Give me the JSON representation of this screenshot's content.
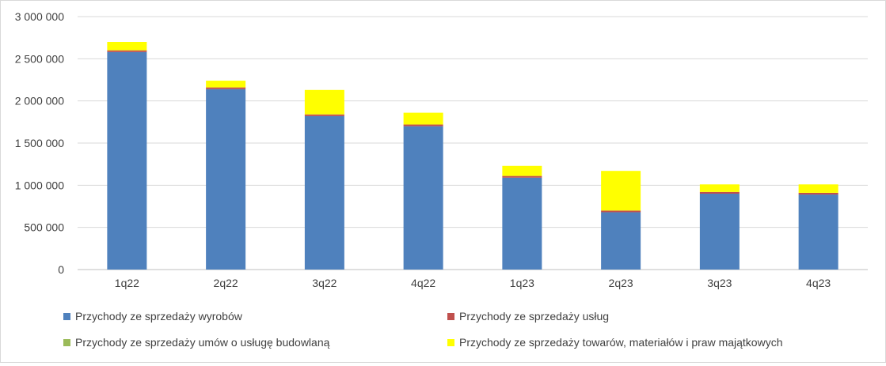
{
  "chart_data": {
    "type": "bar",
    "stacked": true,
    "categories": [
      "1q22",
      "2q22",
      "3q22",
      "4q22",
      "1q23",
      "2q23",
      "3q23",
      "4q23"
    ],
    "ylim": [
      0,
      3000000
    ],
    "yticks": [
      0,
      500000,
      1000000,
      1500000,
      2000000,
      2500000,
      3000000
    ],
    "ytick_labels": [
      "0",
      "500 000",
      "1 000 000",
      "1 500 000",
      "2 000 000",
      "2 500 000",
      "3 000 000"
    ],
    "grid": true,
    "legend_position": "bottom",
    "series": [
      {
        "name": "Przychody ze sprzedaży wyrobów",
        "color": "#4f81bd",
        "values": [
          2580000,
          2140000,
          1820000,
          1700000,
          1090000,
          680000,
          900000,
          890000
        ]
      },
      {
        "name": "Przychody ze sprzedaży usług",
        "color": "#c0504d",
        "values": [
          20000,
          20000,
          20000,
          20000,
          20000,
          20000,
          20000,
          20000
        ]
      },
      {
        "name": "Przychody ze sprzedaży umów o usługę budowlaną",
        "color": "#9bbb59",
        "values": [
          0,
          0,
          0,
          0,
          0,
          0,
          0,
          0
        ]
      },
      {
        "name": "Przychody ze sprzedaży towarów, materiałów i praw majątkowych",
        "color": "#ffff00",
        "values": [
          100000,
          80000,
          290000,
          140000,
          120000,
          470000,
          90000,
          100000
        ]
      }
    ]
  }
}
